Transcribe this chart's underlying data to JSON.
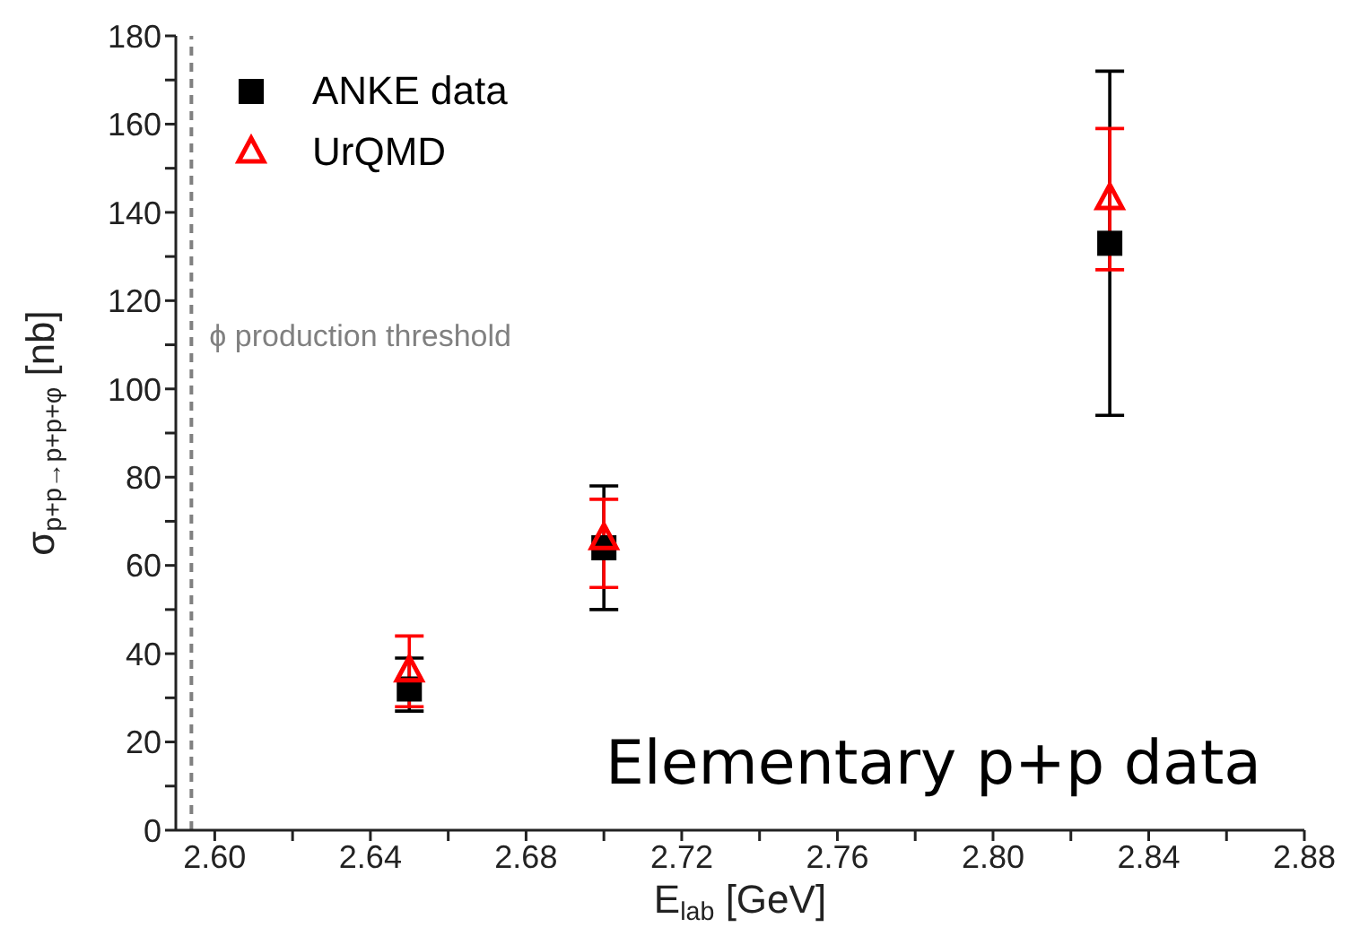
{
  "chart_data": {
    "type": "scatter",
    "xlabel": "E$_{lab}$ [GeV]",
    "ylabel": "σ$_{p+p→p+p+φ}$ [nb]",
    "xlim": [
      2.59,
      2.88
    ],
    "xticks": [
      {
        "value": 2.6,
        "label": "2.60"
      },
      {
        "value": 2.62,
        "label": null
      },
      2.64,
      {
        "value": 2.66,
        "label": null
      },
      2.68,
      {
        "value": 2.7,
        "label": null
      },
      2.72,
      {
        "value": 2.74,
        "label": null
      },
      2.76,
      {
        "value": 2.78,
        "label": null
      },
      {
        "value": 2.8,
        "label": "2.80"
      },
      {
        "value": 2.82,
        "label": null
      },
      2.84,
      {
        "value": 2.86,
        "label": null
      },
      2.88
    ],
    "ylim": [
      0,
      180
    ],
    "yticks": [
      0,
      {
        "value": 10,
        "label": null
      },
      20,
      {
        "value": 30,
        "label": null
      },
      40,
      {
        "value": 50,
        "label": null
      },
      60,
      {
        "value": 70,
        "label": null
      },
      80,
      {
        "value": 90,
        "label": null
      },
      100,
      {
        "value": 110,
        "label": null
      },
      120,
      {
        "value": 130,
        "label": null
      },
      140,
      {
        "value": 150,
        "label": null
      },
      160,
      {
        "value": 170,
        "label": null
      },
      180
    ],
    "x": [
      2.65,
      2.7,
      2.83
    ],
    "series": [
      {
        "name": "ANKE data",
        "color": "#000000",
        "marker": "square",
        "values": [
          32,
          64,
          133
        ],
        "errors": [
          [
            27,
            39
          ],
          [
            50,
            78
          ],
          [
            94,
            172
          ]
        ]
      },
      {
        "name": "UrQMD",
        "color": "#ff0000",
        "marker": "triangle",
        "values": [
          36,
          66,
          143
        ],
        "errors": [
          [
            28,
            44
          ],
          [
            55,
            75
          ],
          [
            127,
            159
          ]
        ]
      }
    ],
    "ref_lines": [
      {
        "axis": "x",
        "value": 2.594,
        "label": "ϕ production threshold",
        "color": "#808080",
        "line_style": "dashed"
      }
    ],
    "annotations": [
      "Elementary p+p data"
    ],
    "legend": "top left",
    "grid": false
  }
}
